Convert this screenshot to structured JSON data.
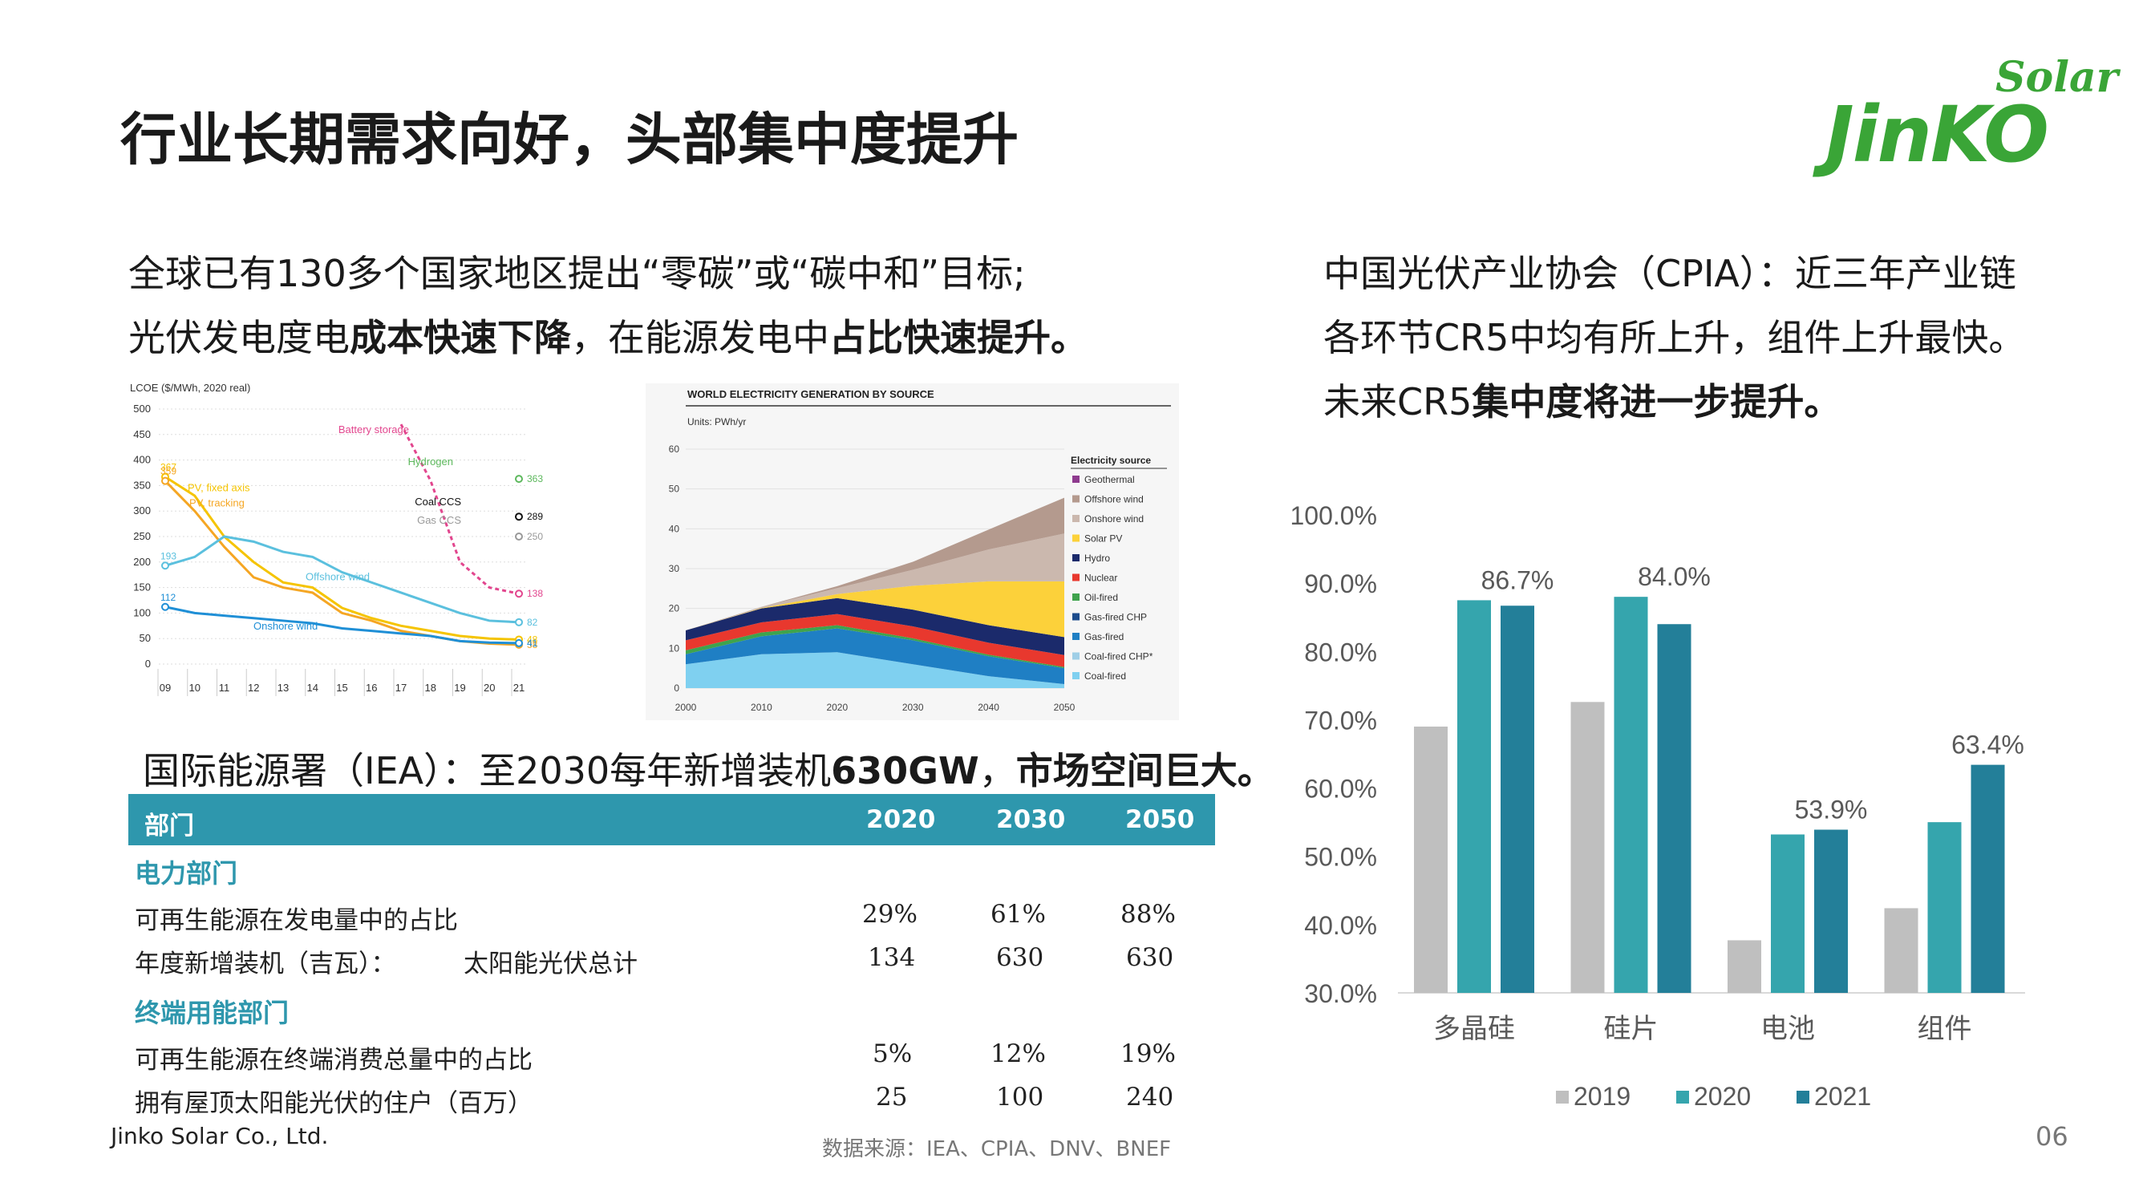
{
  "header": {
    "title": "行业长期需求向好，头部集中度提升",
    "logo_top": "Solar",
    "logo_main": "JinKO"
  },
  "left_text": {
    "line1": "全球已有130多个国家地区提出“零碳”或“碳中和”目标;",
    "line2_a": "光伏发电度电",
    "line2_b": "成本快速下降",
    "line2_c": "，在能源发电中",
    "line2_d": "占比快速提升。"
  },
  "right_text": {
    "line1": "中国光伏产业协会（CPIA）：近三年产业链",
    "line2": "各环节CR5中均有所上升，组件上升最快。",
    "line3_a": "未来CR5",
    "line3_b": "集中度将进一步提升。"
  },
  "iea_text": {
    "a": "国际能源署（IEA）：至2030每年新增装机",
    "b": "630GW",
    "c": "，",
    "d": "市场空间巨大。"
  },
  "table": {
    "headers": [
      "部门",
      "2020",
      "2030",
      "2050"
    ],
    "sections": [
      {
        "name": "电力部门",
        "rows": [
          {
            "label": "可再生能源在发电量中的占比",
            "sub": "",
            "values": [
              "29%",
              "61%",
              "88%"
            ]
          },
          {
            "label": "年度新增装机（吉瓦）：",
            "sub": "太阳能光伏总计",
            "values": [
              "134",
              "630",
              "630"
            ]
          }
        ]
      },
      {
        "name": "终端用能部门",
        "rows": [
          {
            "label": "可再生能源在终端消费总量中的占比",
            "sub": "",
            "values": [
              "5%",
              "12%",
              "19%"
            ]
          },
          {
            "label": "拥有屋顶太阳能光伏的住户（百万）",
            "sub": "",
            "values": [
              "25",
              "100",
              "240"
            ]
          }
        ]
      }
    ]
  },
  "footer": {
    "company": "Jinko Solar Co., Ltd.",
    "source": "数据来源：IEA、CPIA、DNV、BNEF",
    "page": "06"
  },
  "chart_data": [
    {
      "type": "line",
      "title": "LCOE ($/MWh, 2020 real)",
      "ylim": [
        0,
        500
      ],
      "yticks": [
        0,
        50,
        100,
        150,
        200,
        250,
        300,
        350,
        400,
        450,
        500
      ],
      "x_years": [
        "09",
        "10",
        "11",
        "12",
        "13",
        "14",
        "15",
        "16",
        "17",
        "18",
        "19",
        "20",
        "21"
      ],
      "series": [
        {
          "name": "PV, fixed axis",
          "color": "#f5c400",
          "start_label": "367",
          "end_label": "48",
          "values": [
            367,
            330,
            250,
            200,
            160,
            150,
            110,
            90,
            75,
            65,
            55,
            50,
            48
          ]
        },
        {
          "name": "PV, tracking",
          "color": "#f5a623",
          "start_label": "359",
          "end_label": "38",
          "values": [
            359,
            300,
            230,
            170,
            150,
            140,
            100,
            85,
            65,
            55,
            45,
            40,
            38
          ]
        },
        {
          "name": "Offshore wind",
          "color": "#5bc0de",
          "start_label": "193",
          "end_label": "82",
          "values": [
            193,
            210,
            250,
            240,
            220,
            210,
            180,
            160,
            140,
            120,
            100,
            85,
            82
          ]
        },
        {
          "name": "Onshore wind",
          "color": "#1f8fd6",
          "start_label": "112",
          "end_label": "41",
          "values": [
            112,
            100,
            95,
            90,
            85,
            80,
            70,
            65,
            60,
            55,
            45,
            42,
            41
          ]
        },
        {
          "name": "Battery storage",
          "color": "#e2468e",
          "start_label": "",
          "end_label": "138",
          "values": [
            null,
            null,
            null,
            null,
            null,
            null,
            null,
            null,
            470,
            360,
            200,
            150,
            138
          ]
        },
        {
          "name": "Hydrogen",
          "color": "#5cb85c",
          "start_label": "",
          "end_label": "363",
          "values": [
            null,
            null,
            null,
            null,
            null,
            null,
            null,
            null,
            null,
            null,
            null,
            null,
            363
          ]
        },
        {
          "name": "Coal CCS",
          "color": "#111111",
          "start_label": "",
          "end_label": "289",
          "values": [
            null,
            null,
            null,
            null,
            null,
            null,
            null,
            null,
            null,
            null,
            null,
            null,
            289
          ]
        },
        {
          "name": "Gas CCS",
          "color": "#999999",
          "start_label": "",
          "end_label": "250",
          "values": [
            null,
            null,
            null,
            null,
            null,
            null,
            null,
            null,
            null,
            null,
            null,
            null,
            250
          ]
        }
      ]
    },
    {
      "type": "area",
      "title": "WORLD ELECTRICITY GENERATION BY SOURCE",
      "ylabel": "Units: PWh/yr",
      "ylim": [
        0,
        60
      ],
      "yticks": [
        0,
        10,
        20,
        30,
        40,
        50,
        60
      ],
      "x": [
        2000,
        2010,
        2020,
        2030,
        2040,
        2050
      ],
      "legend_title": "Electricity source",
      "legend": [
        {
          "name": "Geothermal",
          "color": "#8e3a8e"
        },
        {
          "name": "Offshore wind",
          "color": "#b49a8e"
        },
        {
          "name": "Onshore wind",
          "color": "#cbb8ae"
        },
        {
          "name": "Solar PV",
          "color": "#fcd13a"
        },
        {
          "name": "Hydro",
          "color": "#1b2a6b"
        },
        {
          "name": "Nuclear",
          "color": "#e8382e"
        },
        {
          "name": "Oil-fired",
          "color": "#3fa34d"
        },
        {
          "name": "Gas-fired CHP",
          "color": "#1c4c8c"
        },
        {
          "name": "Gas-fired",
          "color": "#1f7fc4"
        },
        {
          "name": "Coal-fired CHP*",
          "color": "#9fcfe7"
        },
        {
          "name": "Coal-fired",
          "color": "#7fd0f0"
        }
      ],
      "stack_order_bottom_up": [
        "Coal-fired",
        "Gas-fired",
        "Oil-fired",
        "Nuclear",
        "Hydro",
        "Solar PV",
        "Onshore wind",
        "Offshore wind"
      ],
      "series": [
        {
          "name": "Coal-fired",
          "values": [
            6,
            8.5,
            9,
            6,
            3,
            1
          ]
        },
        {
          "name": "Gas-fired",
          "values": [
            2.5,
            4.5,
            6,
            6,
            5,
            4
          ]
        },
        {
          "name": "Oil-fired",
          "values": [
            1,
            1,
            0.8,
            0.5,
            0.4,
            0.3
          ]
        },
        {
          "name": "Nuclear",
          "values": [
            2.5,
            2.5,
            2.8,
            3,
            3,
            3
          ]
        },
        {
          "name": "Hydro",
          "values": [
            2.5,
            3.5,
            4,
            4.2,
            4.4,
            4.5
          ]
        },
        {
          "name": "Solar PV",
          "values": [
            0,
            0.1,
            1,
            6,
            11,
            14
          ]
        },
        {
          "name": "Onshore wind",
          "values": [
            0,
            0.3,
            1.5,
            4,
            8,
            12
          ]
        },
        {
          "name": "Offshore wind",
          "values": [
            0,
            0,
            0.5,
            2,
            5,
            9
          ]
        }
      ]
    },
    {
      "type": "bar",
      "categories": [
        "多晶硅",
        "硅片",
        "电池",
        "组件"
      ],
      "ylim": [
        0.3,
        1.0
      ],
      "yticks": [
        "30.0%",
        "40.0%",
        "50.0%",
        "60.0%",
        "70.0%",
        "80.0%",
        "90.0%",
        "100.0%"
      ],
      "legend_placement": "bottom",
      "series": [
        {
          "name": "2019",
          "color": "#bfbfbf",
          "values": [
            0.69,
            0.726,
            0.377,
            0.424
          ]
        },
        {
          "name": "2020",
          "color": "#35a5ad",
          "values": [
            0.875,
            0.88,
            0.532,
            0.55
          ]
        },
        {
          "name": "2021",
          "color": "#237f99",
          "values": [
            0.867,
            0.84,
            0.539,
            0.634
          ]
        }
      ],
      "data_labels": [
        "86.7%",
        "84.0%",
        "53.9%",
        "63.4%"
      ]
    }
  ]
}
